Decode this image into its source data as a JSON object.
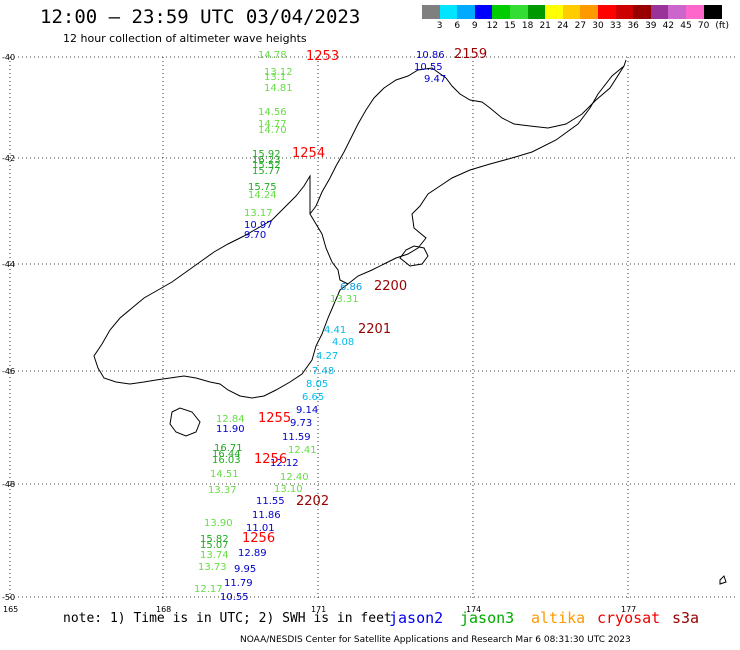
{
  "header": {
    "title": "12:00 – 23:59 UTC 03/04/2023",
    "subtitle": "12 hour collection of altimeter wave heights"
  },
  "colorbar": {
    "unit_label": "(ft)",
    "ticks": [
      "3",
      "6",
      "9",
      "12",
      "15",
      "18",
      "21",
      "24",
      "27",
      "30",
      "33",
      "36",
      "39",
      "42",
      "45",
      "70"
    ],
    "colors": [
      "#7f7f7f",
      "#00e5ff",
      "#00aaff",
      "#0000ff",
      "#00cc00",
      "#33dd33",
      "#009900",
      "#ffff00",
      "#ffcc00",
      "#ff9900",
      "#ff0000",
      "#cc0000",
      "#990000",
      "#993399",
      "#cc66cc",
      "#ff66cc",
      "#000000"
    ]
  },
  "map": {
    "lat_labels": [
      "-40",
      "-42",
      "-44",
      "-46",
      "-48",
      "-50"
    ],
    "lon_labels": [
      "165",
      "168",
      "171",
      "174",
      "177"
    ],
    "tracks": [
      {
        "label": "1253",
        "color": "#ff0000",
        "points": [
          {
            "v": "14.78",
            "c": "#66dd44"
          },
          {
            "v": "13.12",
            "c": "#66dd44"
          },
          {
            "v": "13.1",
            "c": "#66dd44"
          },
          {
            "v": "14.81",
            "c": "#66dd44"
          },
          {
            "v": "14.56",
            "c": "#66dd44"
          },
          {
            "v": "14.77",
            "c": "#66dd44"
          },
          {
            "v": "14.70",
            "c": "#66dd44"
          }
        ]
      },
      {
        "label": "1254",
        "color": "#ff0000",
        "points": [
          {
            "v": "15.92",
            "c": "#22aa22"
          },
          {
            "v": "16.23",
            "c": "#22aa22"
          },
          {
            "v": "15.52",
            "c": "#22aa22"
          },
          {
            "v": "15.77",
            "c": "#22aa22"
          },
          {
            "v": "15.75",
            "c": "#22aa22"
          },
          {
            "v": "14.24",
            "c": "#66dd44"
          },
          {
            "v": "13.17",
            "c": "#66dd44"
          },
          {
            "v": "10.97",
            "c": "#0000cc"
          },
          {
            "v": "9.70",
            "c": "#0000cc"
          }
        ]
      },
      {
        "label": "2159",
        "color": "#990000",
        "points": [
          {
            "v": "10.86",
            "c": "#0000cc"
          },
          {
            "v": "10.55",
            "c": "#0000cc"
          },
          {
            "v": "9.47",
            "c": "#0000cc"
          }
        ]
      },
      {
        "label": "2200",
        "color": "#990000",
        "points": [
          {
            "v": "6.86",
            "c": "#0099dd"
          },
          {
            "v": "13.31",
            "c": "#66dd44"
          }
        ]
      },
      {
        "label": "2201",
        "color": "#990000",
        "points": [
          {
            "v": "4.41",
            "c": "#00bbee"
          },
          {
            "v": "4.08",
            "c": "#00bbee"
          },
          {
            "v": "4.27",
            "c": "#00bbee"
          },
          {
            "v": "7.48",
            "c": "#00bbee"
          },
          {
            "v": "8.05",
            "c": "#00bbee"
          },
          {
            "v": "6.65",
            "c": "#00bbee"
          },
          {
            "v": "9.14",
            "c": "#0000cc"
          },
          {
            "v": "9.73",
            "c": "#0000cc"
          },
          {
            "v": "11.59",
            "c": "#0000cc"
          }
        ]
      },
      {
        "label": "1255",
        "color": "#ff0000",
        "points": [
          {
            "v": "12.84",
            "c": "#66dd44"
          },
          {
            "v": "11.90",
            "c": "#0000cc"
          }
        ]
      },
      {
        "label": "1256",
        "color": "#ff0000",
        "points": [
          {
            "v": "16.71",
            "c": "#22aa22"
          },
          {
            "v": "16.44",
            "c": "#22aa22"
          },
          {
            "v": "16.03",
            "c": "#22aa22"
          },
          {
            "v": "14.51",
            "c": "#66dd44"
          },
          {
            "v": "13.37",
            "c": "#66dd44"
          },
          {
            "v": "12.41",
            "c": "#66dd44"
          },
          {
            "v": "12.12",
            "c": "#0000cc"
          },
          {
            "v": "12.40",
            "c": "#66dd44"
          },
          {
            "v": "13.10",
            "c": "#66dd44"
          }
        ]
      },
      {
        "label": "2202",
        "color": "#990000",
        "points": [
          {
            "v": "11.55",
            "c": "#0000cc"
          },
          {
            "v": "11.86",
            "c": "#0000cc"
          },
          {
            "v": "11.01",
            "c": "#0000cc"
          }
        ]
      },
      {
        "label": "1256",
        "color": "#ff0000",
        "points": [
          {
            "v": "13.90",
            "c": "#66dd44"
          },
          {
            "v": "15.82",
            "c": "#22aa22"
          },
          {
            "v": "15.07",
            "c": "#22aa22"
          },
          {
            "v": "13.74",
            "c": "#66dd44"
          },
          {
            "v": "12.89",
            "c": "#0000cc"
          },
          {
            "v": "13.73",
            "c": "#66dd44"
          },
          {
            "v": "9.95",
            "c": "#0000cc"
          },
          {
            "v": "12.17",
            "c": "#66dd44"
          },
          {
            "v": "11.79",
            "c": "#0000cc"
          },
          {
            "v": "10.55",
            "c": "#0000cc"
          }
        ]
      }
    ]
  },
  "footer": {
    "note": "note: 1) Time is in UTC; 2) SWH is in feet",
    "satellites": [
      {
        "name": "jason2",
        "color": "#0000ee"
      },
      {
        "name": "jason3",
        "color": "#00aa00"
      },
      {
        "name": "altika",
        "color": "#ff9900"
      },
      {
        "name": "cryosat",
        "color": "#ee0000"
      },
      {
        "name": "s3a",
        "color": "#990000"
      }
    ],
    "credit": "NOAA/NESDIS Center for Satellite Applications and Research   Mar  6 08:31:30 UTC 2023"
  }
}
